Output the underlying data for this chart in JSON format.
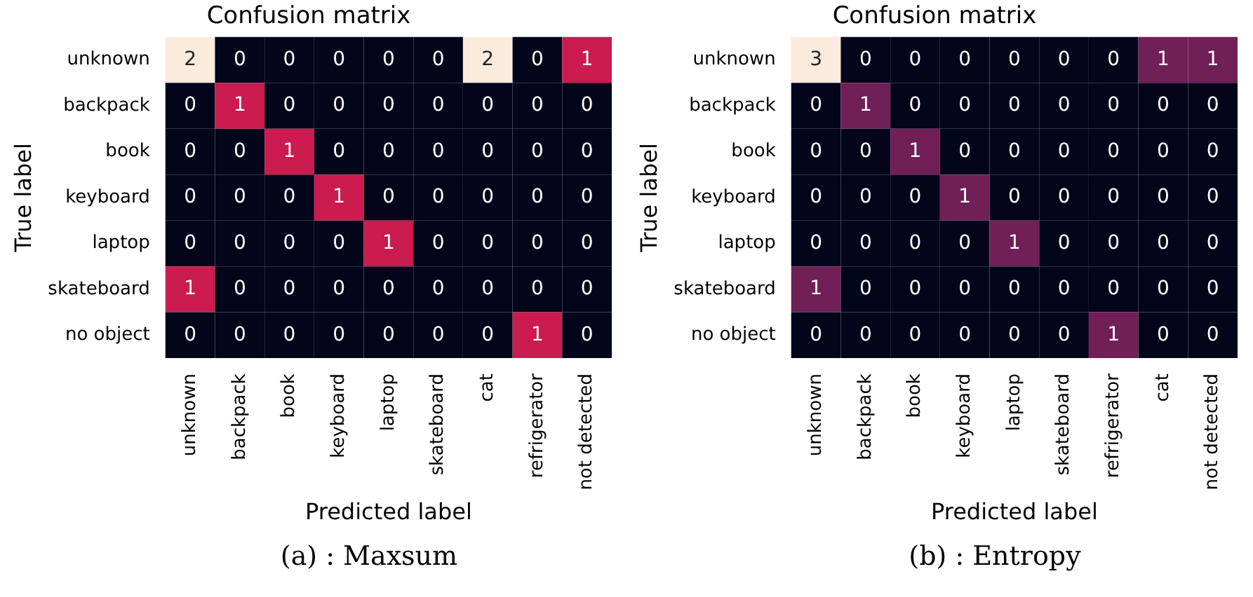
{
  "chart_data": [
    {
      "type": "heatmap",
      "title": "Confusion matrix",
      "xlabel": "Predicted label",
      "ylabel": "True label",
      "categories": [
        "unknown",
        "backpack",
        "book",
        "keyboard",
        "laptop",
        "skateboard",
        "cat",
        "refrigerator",
        "not detected"
      ],
      "y_categories": [
        "unknown",
        "backpack",
        "book",
        "keyboard",
        "laptop",
        "skateboard",
        "no object"
      ],
      "cells": [
        [
          2,
          0,
          0,
          0,
          0,
          0,
          2,
          0,
          1
        ],
        [
          0,
          1,
          0,
          0,
          0,
          0,
          0,
          0,
          0
        ],
        [
          0,
          0,
          1,
          0,
          0,
          0,
          0,
          0,
          0
        ],
        [
          0,
          0,
          0,
          1,
          0,
          0,
          0,
          0,
          0
        ],
        [
          0,
          0,
          0,
          0,
          1,
          0,
          0,
          0,
          0
        ],
        [
          1,
          0,
          0,
          0,
          0,
          0,
          0,
          0,
          0
        ],
        [
          0,
          0,
          0,
          0,
          0,
          0,
          0,
          1,
          0
        ]
      ],
      "colors": [
        [
          "#faebdd",
          "#03051a",
          "#03051a",
          "#03051a",
          "#03051a",
          "#03051a",
          "#faebdd",
          "#03051a",
          "#cb1b4f"
        ],
        [
          "#03051a",
          "#cb1b4f",
          "#03051a",
          "#03051a",
          "#03051a",
          "#03051a",
          "#03051a",
          "#03051a",
          "#03051a"
        ],
        [
          "#03051a",
          "#03051a",
          "#cb1b4f",
          "#03051a",
          "#03051a",
          "#03051a",
          "#03051a",
          "#03051a",
          "#03051a"
        ],
        [
          "#03051a",
          "#03051a",
          "#03051a",
          "#cb1b4f",
          "#03051a",
          "#03051a",
          "#03051a",
          "#03051a",
          "#03051a"
        ],
        [
          "#03051a",
          "#03051a",
          "#03051a",
          "#03051a",
          "#cb1b4f",
          "#03051a",
          "#03051a",
          "#03051a",
          "#03051a"
        ],
        [
          "#cb1b4f",
          "#03051a",
          "#03051a",
          "#03051a",
          "#03051a",
          "#03051a",
          "#03051a",
          "#03051a",
          "#03051a"
        ],
        [
          "#03051a",
          "#03051a",
          "#03051a",
          "#03051a",
          "#03051a",
          "#03051a",
          "#03051a",
          "#cb1b4f",
          "#03051a"
        ]
      ],
      "data_labels": true,
      "annotations": [
        "(a) : Maxsum"
      ]
    },
    {
      "type": "heatmap",
      "title": "Confusion matrix",
      "xlabel": "Predicted label",
      "ylabel": "True label",
      "categories": [
        "unknown",
        "backpack",
        "book",
        "keyboard",
        "laptop",
        "skateboard",
        "refrigerator",
        "cat",
        "not detected"
      ],
      "y_categories": [
        "unknown",
        "backpack",
        "book",
        "keyboard",
        "laptop",
        "skateboard",
        "no object"
      ],
      "cells": [
        [
          3,
          0,
          0,
          0,
          0,
          0,
          0,
          1,
          1
        ],
        [
          0,
          1,
          0,
          0,
          0,
          0,
          0,
          0,
          0
        ],
        [
          0,
          0,
          1,
          0,
          0,
          0,
          0,
          0,
          0
        ],
        [
          0,
          0,
          0,
          1,
          0,
          0,
          0,
          0,
          0
        ],
        [
          0,
          0,
          0,
          0,
          1,
          0,
          0,
          0,
          0
        ],
        [
          1,
          0,
          0,
          0,
          0,
          0,
          0,
          0,
          0
        ],
        [
          0,
          0,
          0,
          0,
          0,
          0,
          1,
          0,
          0
        ]
      ],
      "colors": [
        [
          "#faebdd",
          "#03051a",
          "#03051a",
          "#03051a",
          "#03051a",
          "#03051a",
          "#03051a",
          "#701f57",
          "#701f57"
        ],
        [
          "#03051a",
          "#701f57",
          "#03051a",
          "#03051a",
          "#03051a",
          "#03051a",
          "#03051a",
          "#03051a",
          "#03051a"
        ],
        [
          "#03051a",
          "#03051a",
          "#701f57",
          "#03051a",
          "#03051a",
          "#03051a",
          "#03051a",
          "#03051a",
          "#03051a"
        ],
        [
          "#03051a",
          "#03051a",
          "#03051a",
          "#701f57",
          "#03051a",
          "#03051a",
          "#03051a",
          "#03051a",
          "#03051a"
        ],
        [
          "#03051a",
          "#03051a",
          "#03051a",
          "#03051a",
          "#701f57",
          "#03051a",
          "#03051a",
          "#03051a",
          "#03051a"
        ],
        [
          "#701f57",
          "#03051a",
          "#03051a",
          "#03051a",
          "#03051a",
          "#03051a",
          "#03051a",
          "#03051a",
          "#03051a"
        ],
        [
          "#03051a",
          "#03051a",
          "#03051a",
          "#03051a",
          "#03051a",
          "#03051a",
          "#701f57",
          "#03051a",
          "#03051a"
        ]
      ],
      "data_labels": true,
      "annotations": [
        "(b) : Entropy"
      ]
    }
  ]
}
